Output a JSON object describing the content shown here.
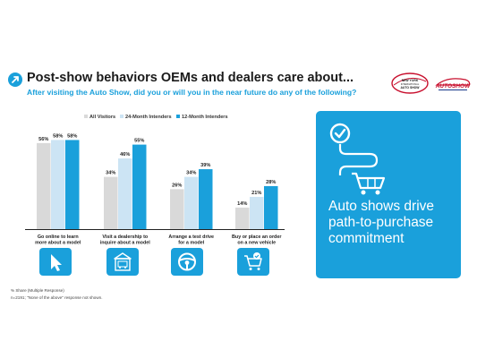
{
  "header": {
    "title": "Post-show behaviors OEMs and dealers care about...",
    "subtitle": "After visiting the Auto Show, did you or will you in the near future do any of the following?"
  },
  "logos": {
    "ny_auto_show_line1": "NEW YORK",
    "ny_auto_show_line2": "INTERNATIONAL",
    "ny_auto_show_line3": "AUTO SHOW",
    "autoshow_brand": "AUTOSHOW"
  },
  "chart_data": {
    "type": "bar",
    "categories": [
      "Go online to learn more about a model",
      "Visit a dealership to inquire about a model",
      "Arrange a test drive for a model",
      "Buy or place an order on a new vehicle"
    ],
    "category_lines": [
      [
        "Go online to learn",
        "more about a model"
      ],
      [
        "Visit a dealership to",
        "inquire about a model"
      ],
      [
        "Arrange a test drive",
        "for a model"
      ],
      [
        "Buy or place an order",
        "on a new vehicle"
      ]
    ],
    "series": [
      {
        "name": "All Visitors",
        "values": [
          56,
          34,
          26,
          14
        ],
        "labels": [
          "56%",
          "34%",
          "26%",
          "14%"
        ],
        "color": "#d9d9d9"
      },
      {
        "name": "24-Month Intenders",
        "values": [
          58,
          46,
          34,
          21
        ],
        "labels": [
          "58%",
          "46%",
          "34%",
          "21%"
        ],
        "color": "#cce4f4"
      },
      {
        "name": "12-Month Intenders",
        "values": [
          58,
          55,
          39,
          28
        ],
        "labels": [
          "58%",
          "55%",
          "39%",
          "28%"
        ],
        "color": "#1aa0db"
      }
    ],
    "ylim": [
      0,
      60
    ],
    "grid": false,
    "legend_position": "top"
  },
  "icons": [
    "cursor-arrow-icon",
    "dealership-building-icon",
    "steering-wheel-icon",
    "shopping-cart-check-icon"
  ],
  "footnotes": {
    "line1": "% Share (Multiple Response)",
    "line2": "n=2191; \"None of the above\" response not shown."
  },
  "callout": {
    "text": "Auto shows drive path-to-purchase commitment",
    "color": "#1aa0db"
  }
}
